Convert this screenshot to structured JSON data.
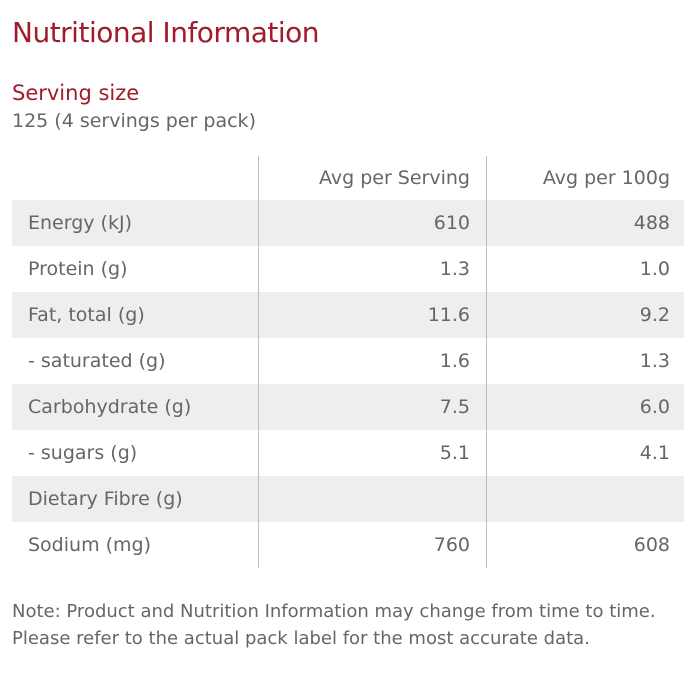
{
  "title": "Nutritional Information",
  "serving": {
    "label": "Serving size",
    "value": "125 (4 servings per pack)"
  },
  "table": {
    "headers": {
      "nutrient": "",
      "per_serving": "Avg per Serving",
      "per_100g": "Avg per 100g"
    },
    "rows": [
      {
        "name": "Energy (kJ)",
        "per_serving": "610",
        "per_100g": "488"
      },
      {
        "name": "Protein (g)",
        "per_serving": "1.3",
        "per_100g": "1.0"
      },
      {
        "name": "Fat, total (g)",
        "per_serving": "11.6",
        "per_100g": "9.2"
      },
      {
        "name": "- saturated (g)",
        "per_serving": "1.6",
        "per_100g": "1.3"
      },
      {
        "name": "Carbohydrate (g)",
        "per_serving": "7.5",
        "per_100g": "6.0"
      },
      {
        "name": "- sugars (g)",
        "per_serving": "5.1",
        "per_100g": "4.1"
      },
      {
        "name": "Dietary Fibre (g)",
        "per_serving": "",
        "per_100g": ""
      },
      {
        "name": "Sodium (mg)",
        "per_serving": "760",
        "per_100g": "608"
      }
    ]
  },
  "note": "Note: Product and Nutrition Information may change from time to time. Please refer to the actual pack label for the most accurate data.",
  "colors": {
    "heading": "#a01c2c",
    "text": "#666666",
    "row_shade": "#eeeeee",
    "divider": "#bdbdbd"
  }
}
